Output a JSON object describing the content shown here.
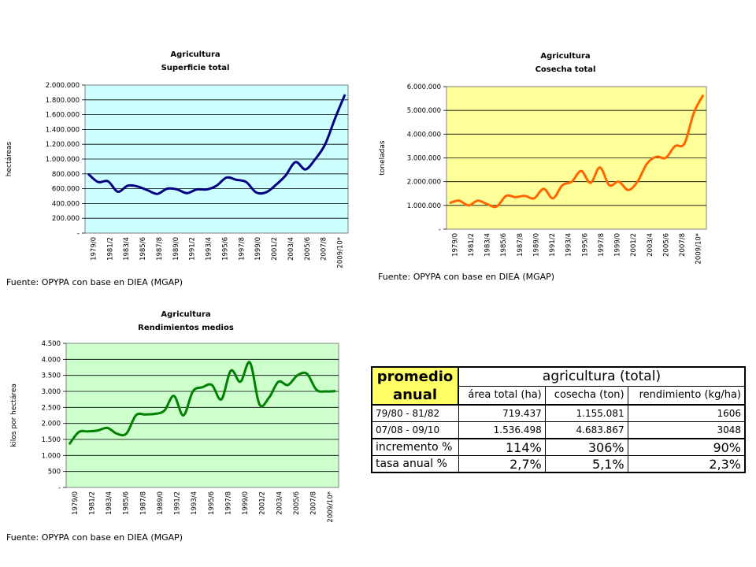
{
  "chart_data": [
    {
      "type": "line",
      "title": "Agricultura",
      "subtitle": "Superficie total",
      "ylabel": "hectáreas",
      "ylim": [
        0,
        2000000
      ],
      "yticks": [
        "-",
        "200.000",
        "400.000",
        "600.000",
        "800.000",
        "1.000.000",
        "1.200.000",
        "1.400.000",
        "1.600.000",
        "1.800.000",
        "2.000.000"
      ],
      "x_tick_labels": [
        "1979/0",
        "1981/2",
        "1983/4",
        "1985/6",
        "1987/8",
        "1989/0",
        "1991/2",
        "1993/4",
        "1995/6",
        "1997/8",
        "1999/0",
        "2001/2",
        "2003/4",
        "2005/6",
        "2007/8",
        "2009/10*"
      ],
      "bg_color": "#ccffff",
      "series_color": "#000080",
      "grid": true,
      "series": [
        {
          "values": [
            800000,
            690000,
            700000,
            560000,
            640000,
            630000,
            580000,
            530000,
            600000,
            590000,
            540000,
            590000,
            590000,
            640000,
            750000,
            720000,
            690000,
            550000,
            550000,
            650000,
            780000,
            960000,
            860000,
            1000000,
            1200000,
            1550000,
            1870000
          ]
        }
      ]
    },
    {
      "type": "line",
      "title": "Agricultura",
      "subtitle": "Cosecha total",
      "ylabel": "toneladas",
      "ylim": [
        0,
        6000000
      ],
      "yticks": [
        "-",
        "1.000.000",
        "2.000.000",
        "3.000.000",
        "4.000.000",
        "5.000.000",
        "6.000.000"
      ],
      "x_tick_labels": [
        "1979/0",
        "1981/2",
        "1983/4",
        "1985/6",
        "1987/8",
        "1989/0",
        "1991/2",
        "1993/4",
        "1995/6",
        "1997/8",
        "1999/0",
        "2001/2",
        "2003/4",
        "2005/6",
        "2007/8",
        "2009/10*"
      ],
      "bg_color": "#ffff99",
      "series_color": "#ff6600",
      "grid": true,
      "series": [
        {
          "values": [
            1100000,
            1200000,
            1000000,
            1200000,
            1050000,
            950000,
            1400000,
            1350000,
            1400000,
            1300000,
            1700000,
            1300000,
            1850000,
            2000000,
            2450000,
            1950000,
            2600000,
            1850000,
            2000000,
            1650000,
            2000000,
            2750000,
            3050000,
            3000000,
            3500000,
            3600000,
            4900000,
            5650000
          ]
        }
      ]
    },
    {
      "type": "line",
      "title": "Agricultura",
      "subtitle": "Rendimientos medios",
      "ylabel": "kilos por hectárea",
      "ylim": [
        0,
        4500
      ],
      "yticks": [
        "-",
        "500",
        "1.000",
        "1.500",
        "2.000",
        "2.500",
        "3.000",
        "3.500",
        "4.000",
        "4.500"
      ],
      "x_tick_labels": [
        "1979/0",
        "1981/2",
        "1983/4",
        "1985/6",
        "1987/8",
        "1989/0",
        "1991/2",
        "1993/4",
        "1995/6",
        "1997/8",
        "1999/0",
        "2001/2",
        "2003/4",
        "2005/6",
        "2007/8",
        "2009/10*"
      ],
      "bg_color": "#ccffcc",
      "series_color": "#008000",
      "grid": true,
      "series": [
        {
          "values": [
            1350,
            1730,
            1750,
            1780,
            1860,
            1680,
            1680,
            2250,
            2280,
            2300,
            2400,
            2860,
            2250,
            3000,
            3130,
            3200,
            2750,
            3650,
            3300,
            3900,
            2600,
            2800,
            3300,
            3200,
            3500,
            3550,
            3050,
            3000,
            3010
          ]
        }
      ]
    }
  ],
  "sources": {
    "chart1": "Fuente: OPYPA con base en DIEA (MGAP)",
    "chart2": "Fuente: OPYPA con base en DIEA (MGAP)",
    "chart3": "Fuente: OPYPA con base en DIEA (MGAP)"
  },
  "summary_table": {
    "header_label_1": "promedio",
    "header_label_2": "anual",
    "group_header": "agricultura (total)",
    "columns": [
      "área total (ha)",
      "cosecha (ton)",
      "rendimiento (kg/ha)"
    ],
    "rows": [
      {
        "label": "79/80 - 81/82",
        "values": [
          "719.437",
          "1.155.081",
          "1606"
        ]
      },
      {
        "label": "07/08 - 09/10",
        "values": [
          "1.536.498",
          "4.683.867",
          "3048"
        ]
      },
      {
        "label": "incremento %",
        "values": [
          "114%",
          "306%",
          "90%"
        ]
      },
      {
        "label": "tasa anual %",
        "values": [
          "2,7%",
          "5,1%",
          "2,3%"
        ]
      }
    ],
    "header_color": "#ffff66"
  }
}
